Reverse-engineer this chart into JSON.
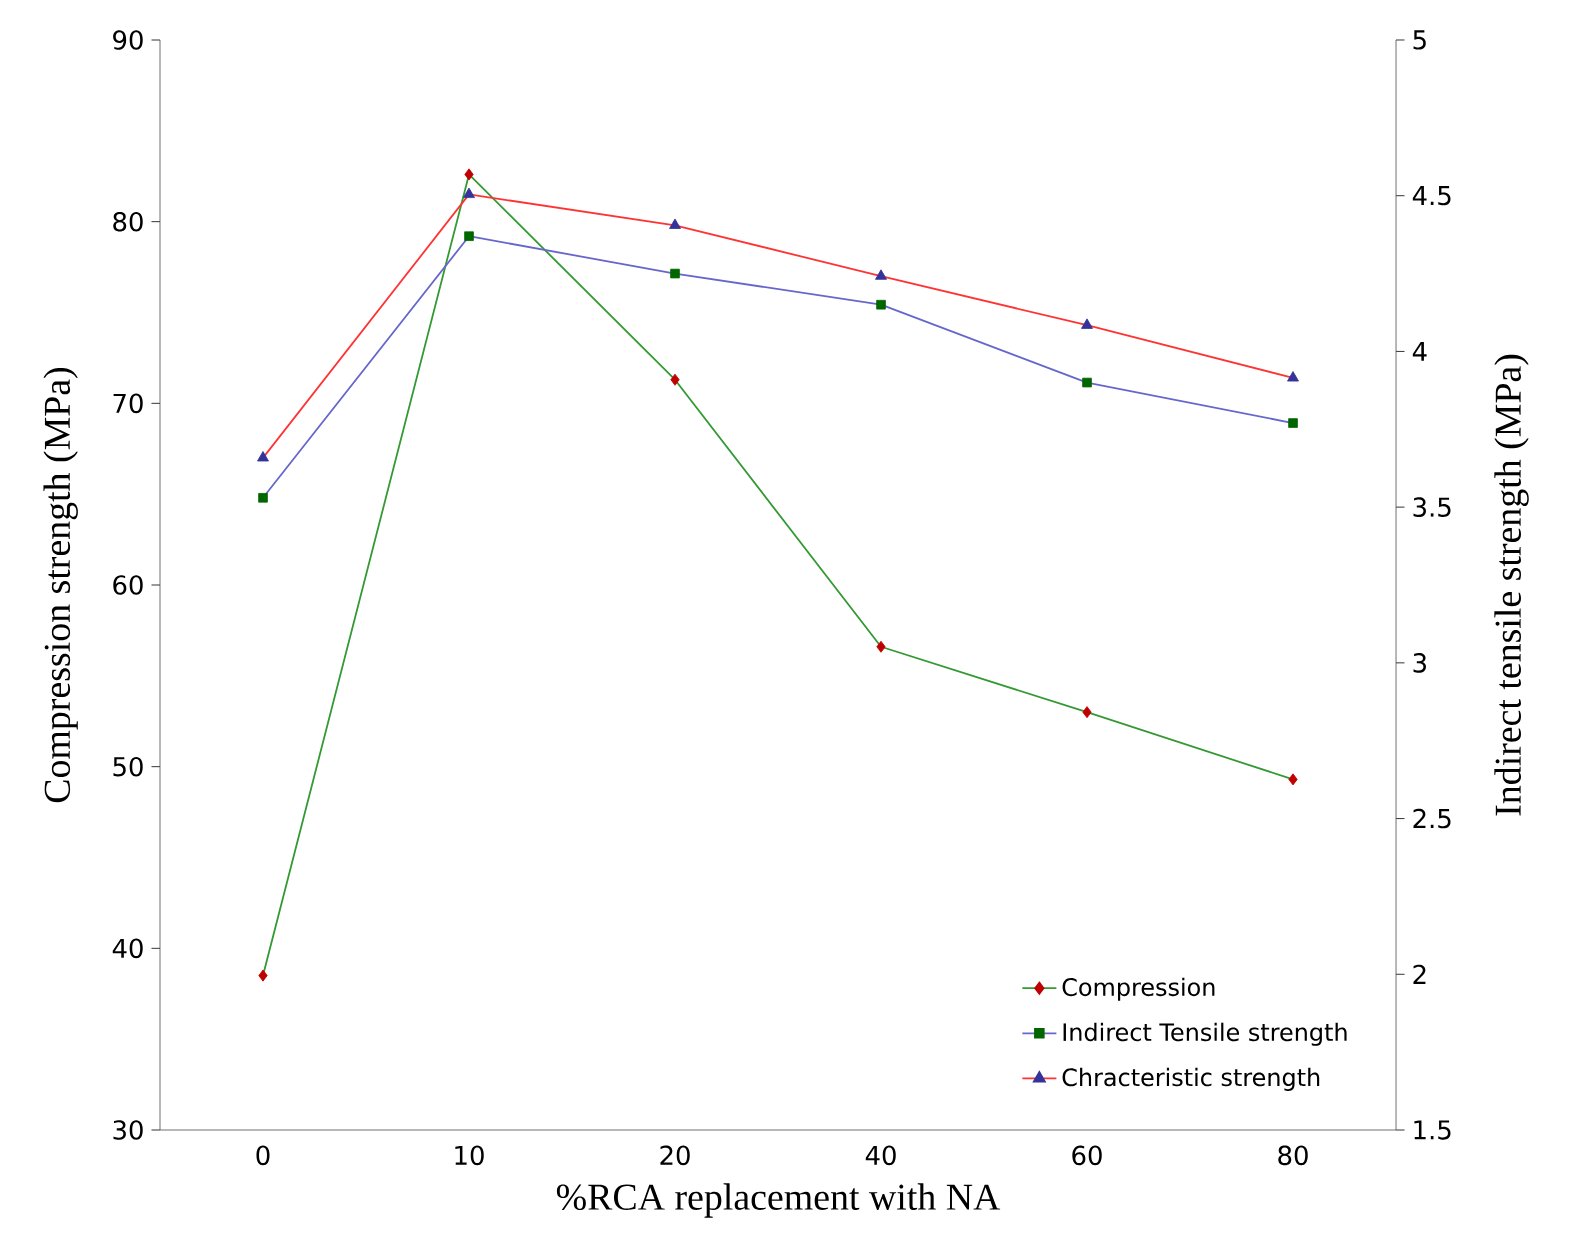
{
  "chart_data": {
    "type": "line",
    "xlabel": "%RCA replacement with NA",
    "ylabel": "Compression strength (MPa)",
    "y2label": "Indirect tensile strength (MPa)",
    "categories": [
      "0",
      "10",
      "20",
      "40",
      "60",
      "80"
    ],
    "ylim": [
      30,
      90
    ],
    "yticks": [
      30,
      40,
      50,
      60,
      70,
      80,
      90
    ],
    "y2lim": [
      1.5,
      5
    ],
    "y2ticks": [
      1.5,
      2,
      2.5,
      3,
      3.5,
      4,
      4.5,
      5
    ],
    "legend": "bottom right",
    "grid": false,
    "series": [
      {
        "name": "Compression",
        "marker": "diamond",
        "color": "#339933",
        "colors": [
          "#c00000",
          "#c00000",
          "#c00000",
          "#c00000",
          "#c00000",
          "#c00000"
        ],
        "values": [
          38.5,
          82.6,
          71.3,
          56.6,
          53.0,
          49.3
        ]
      },
      {
        "name": "Indirect Tensile strength",
        "axis": "y2",
        "marker": "square",
        "color": "#6666cc",
        "colors": [
          "#006600",
          "#006600",
          "#006600",
          "#006600",
          "#006600",
          "#006600"
        ],
        "values": [
          3.53,
          4.37,
          4.25,
          4.15,
          3.9,
          3.77
        ]
      },
      {
        "name": "Chracteristic strength",
        "marker": "triangle",
        "color": "#ff3333",
        "colors": [
          "#333399",
          "#333399",
          "#333399",
          "#333399",
          "#333399",
          "#333399"
        ],
        "values": [
          67.0,
          81.5,
          79.8,
          77.0,
          74.3,
          71.4
        ]
      }
    ]
  }
}
